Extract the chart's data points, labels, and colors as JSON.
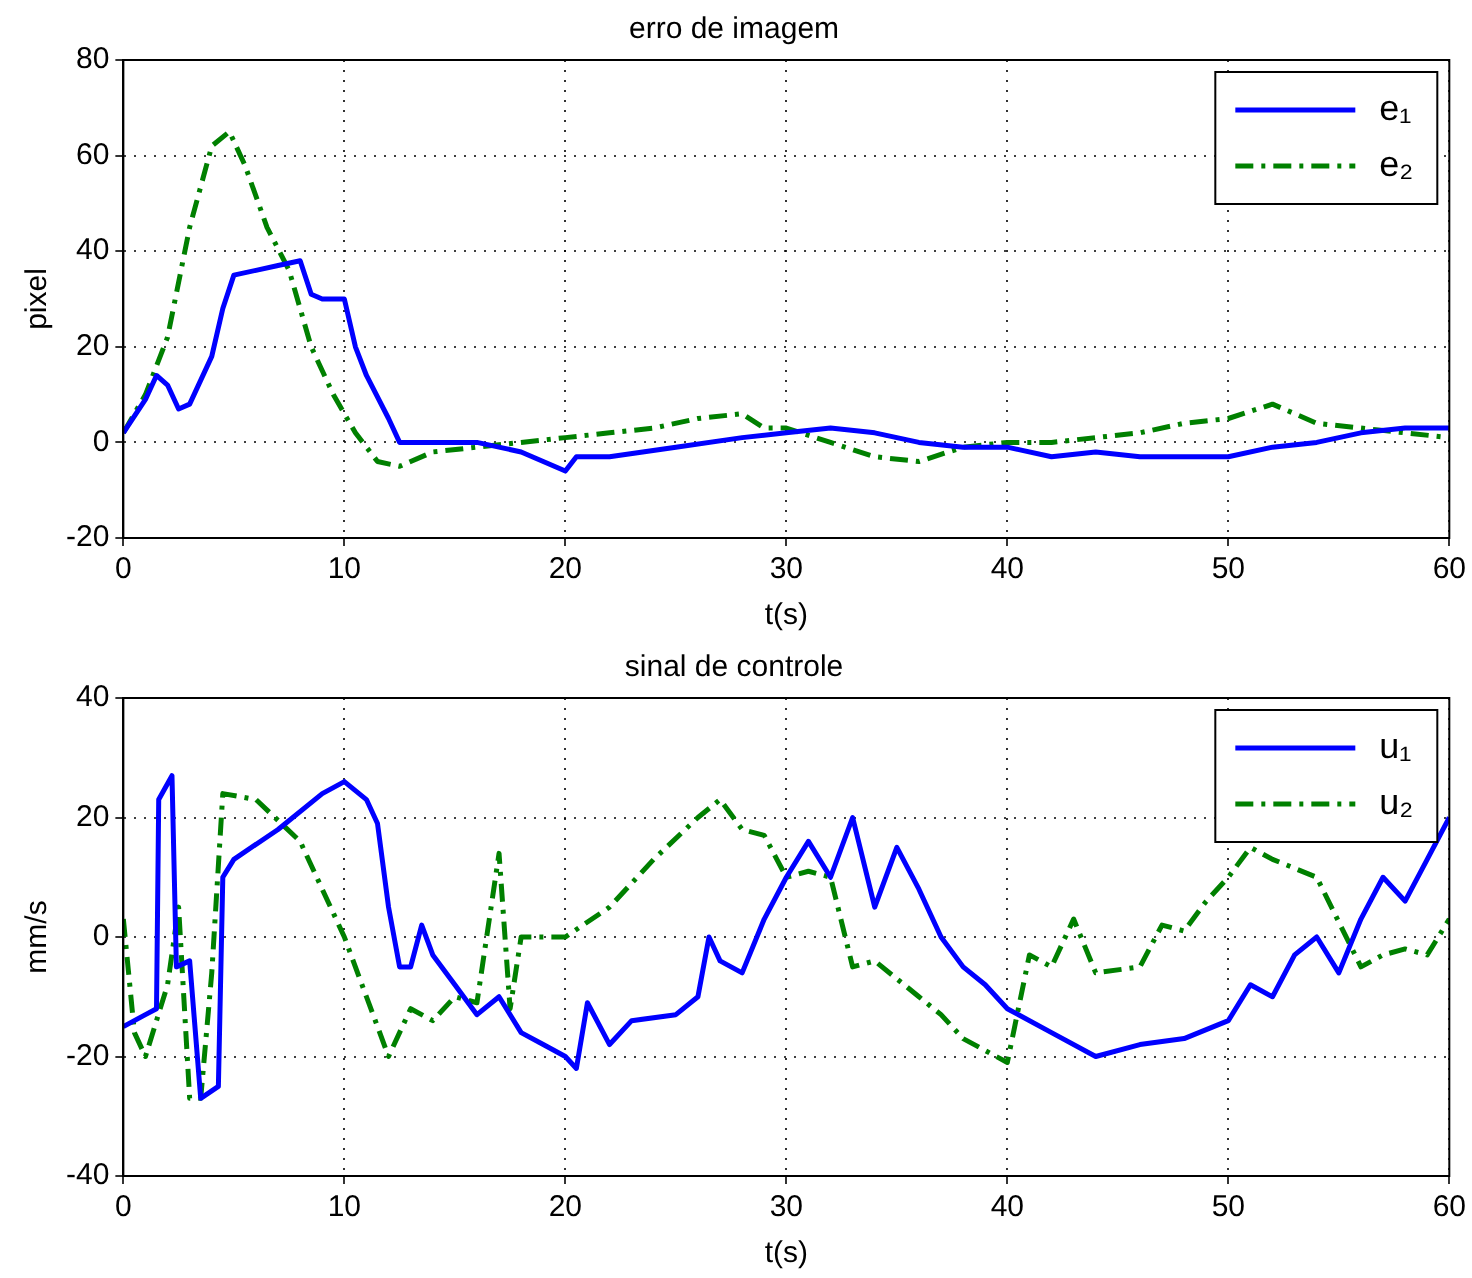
{
  "chart_data": [
    {
      "type": "line",
      "title": "erro de imagem",
      "xlabel": "t(s)",
      "ylabel": "pixel",
      "xlim": [
        0,
        60
      ],
      "xticks": [
        0,
        10,
        20,
        30,
        40,
        50,
        60
      ],
      "ylim": [
        -20,
        80
      ],
      "yticks": [
        -20,
        0,
        20,
        40,
        60,
        80
      ],
      "grid": true,
      "legend": "top right",
      "series": [
        {
          "name": "e₁",
          "color": "#0000ff",
          "line_style": "solid",
          "x": [
            0,
            1,
            1.5,
            2,
            2.5,
            3,
            4,
            4.5,
            5,
            6,
            7,
            8,
            8.5,
            9,
            10,
            10.5,
            11,
            12,
            12.5,
            14,
            16,
            18,
            20,
            20.5,
            22,
            25,
            28,
            30,
            32,
            34,
            36,
            38,
            40,
            42,
            44,
            46,
            48,
            50,
            52,
            54,
            56,
            58,
            60
          ],
          "values": [
            2,
            9,
            14,
            12,
            7,
            8,
            18,
            28,
            35,
            36,
            37,
            38,
            31,
            30,
            30,
            20,
            14,
            5,
            0,
            0,
            0,
            -2,
            -6,
            -3,
            -3,
            -1,
            1,
            2,
            3,
            2,
            0,
            -1,
            -1,
            -3,
            -2,
            -3,
            -3,
            -3,
            -1,
            0,
            2,
            3,
            3
          ]
        },
        {
          "name": "e₂",
          "color": "#008000",
          "line_style": "dashed",
          "x": [
            0,
            1,
            2,
            3,
            4,
            4.8,
            5.5,
            6.5,
            7.5,
            8.5,
            9.5,
            10.5,
            11.5,
            12.5,
            14,
            16,
            18,
            20,
            22,
            24,
            26,
            28,
            29,
            30,
            32,
            34,
            36,
            38,
            40,
            42,
            44,
            46,
            48,
            50,
            52,
            54,
            56,
            58,
            60
          ],
          "values": [
            2,
            10,
            22,
            45,
            62,
            65,
            58,
            45,
            36,
            20,
            10,
            2,
            -4,
            -5,
            -2,
            -1,
            0,
            1,
            2,
            3,
            5,
            6,
            3,
            3,
            0,
            -3,
            -4,
            -1,
            0,
            0,
            1,
            2,
            4,
            5,
            8,
            4,
            3,
            2,
            1
          ]
        }
      ]
    },
    {
      "type": "line",
      "title": "sinal de controle",
      "xlabel": "t(s)",
      "ylabel": "mm/s",
      "xlim": [
        0,
        60
      ],
      "xticks": [
        0,
        10,
        20,
        30,
        40,
        50,
        60
      ],
      "ylim": [
        -40,
        40
      ],
      "yticks": [
        -40,
        -20,
        0,
        20,
        40
      ],
      "grid": true,
      "legend": "top right",
      "series": [
        {
          "name": "u₁",
          "color": "#0000ff",
          "line_style": "solid",
          "x": [
            0,
            1,
            1.5,
            1.6,
            2.2,
            2.4,
            3,
            3.5,
            4.3,
            4.5,
            5,
            7,
            9,
            10,
            11,
            11.5,
            12,
            12.5,
            13,
            13.5,
            14,
            15,
            16,
            17,
            18,
            19,
            20,
            20.5,
            21,
            22,
            23,
            25,
            26,
            26.5,
            27,
            28,
            29,
            30,
            31,
            32,
            33,
            34,
            35,
            36,
            37,
            38,
            39,
            40,
            42,
            44,
            46,
            48,
            50,
            51,
            52,
            53,
            54,
            55,
            56,
            57,
            58,
            59,
            60
          ],
          "values": [
            -15,
            -13,
            -12,
            23,
            27,
            -5,
            -4,
            -27,
            -25,
            10,
            13,
            18,
            24,
            26,
            23,
            19,
            5,
            -5,
            -5,
            2,
            -3,
            -8,
            -13,
            -10,
            -16,
            -18,
            -20,
            -22,
            -11,
            -18,
            -14,
            -13,
            -10,
            0,
            -4,
            -6,
            3,
            10,
            16,
            10,
            20,
            5,
            15,
            8,
            0,
            -5,
            -8,
            -12,
            -16,
            -20,
            -18,
            -17,
            -14,
            -8,
            -10,
            -3,
            0,
            -6,
            3,
            10,
            6,
            13,
            20
          ]
        },
        {
          "name": "u₂",
          "color": "#008000",
          "line_style": "dashed",
          "x": [
            0,
            0.5,
            1,
            1.5,
            2,
            2.5,
            3,
            3.5,
            4,
            4.5,
            6,
            8,
            10,
            11,
            12,
            13,
            14,
            15,
            16,
            17,
            17.5,
            18,
            20,
            22,
            24,
            26,
            27,
            28,
            29,
            30,
            31,
            32,
            33,
            34,
            36,
            37,
            38,
            40,
            41,
            42,
            43,
            44,
            46,
            47,
            48,
            49,
            50,
            51,
            52,
            54,
            56,
            57,
            58,
            59,
            60
          ],
          "values": [
            3,
            -16,
            -20,
            -14,
            -8,
            5,
            -27,
            -27,
            -6,
            24,
            23,
            16,
            0,
            -10,
            -20,
            -12,
            -14,
            -10,
            -11,
            14,
            -12,
            0,
            0,
            5,
            13,
            20,
            23,
            18,
            17,
            10,
            11,
            10,
            -5,
            -4,
            -10,
            -13,
            -17,
            -21,
            -3,
            -5,
            3,
            -6,
            -5,
            2,
            1,
            6,
            10,
            15,
            13,
            10,
            -5,
            -3,
            -2,
            -3,
            3
          ]
        }
      ]
    }
  ]
}
